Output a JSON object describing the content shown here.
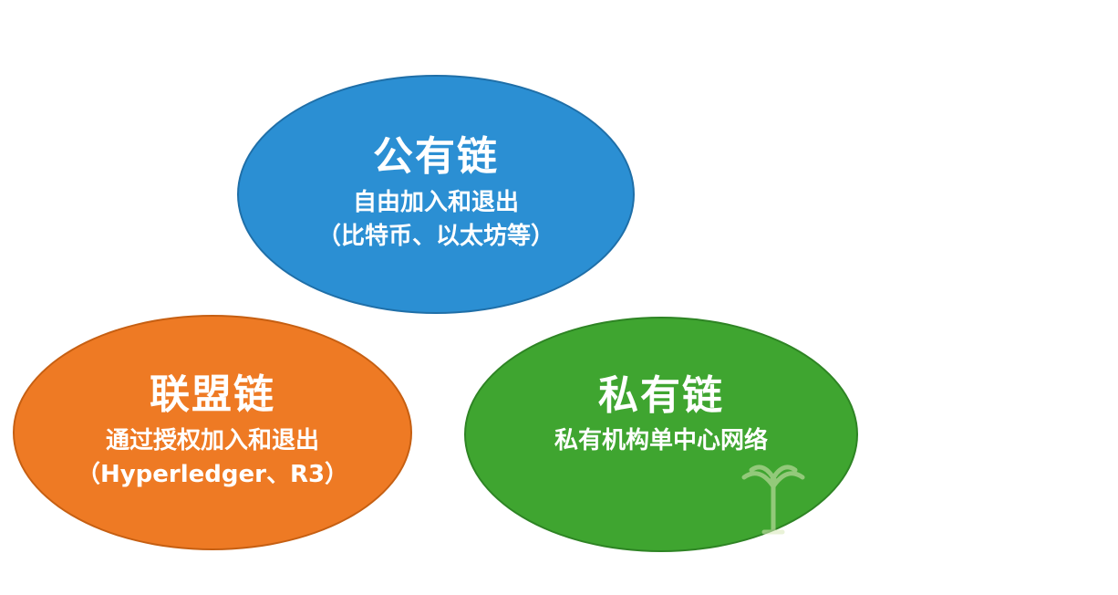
{
  "nodes": {
    "public": {
      "title": "公有链",
      "line1": "自由加入和退出",
      "line2": "（比特币、以太坊等）",
      "color": "#2b8fd3"
    },
    "consortium": {
      "title": "联盟链",
      "line1": "通过授权加入和退出",
      "line2": "（Hyperledger、R3）",
      "color": "#ee7a24"
    },
    "private": {
      "title": "私有链",
      "line1": "私有机构单中心网络",
      "color": "#3fa530"
    }
  },
  "watermark_icon": "tree-logo-icon"
}
